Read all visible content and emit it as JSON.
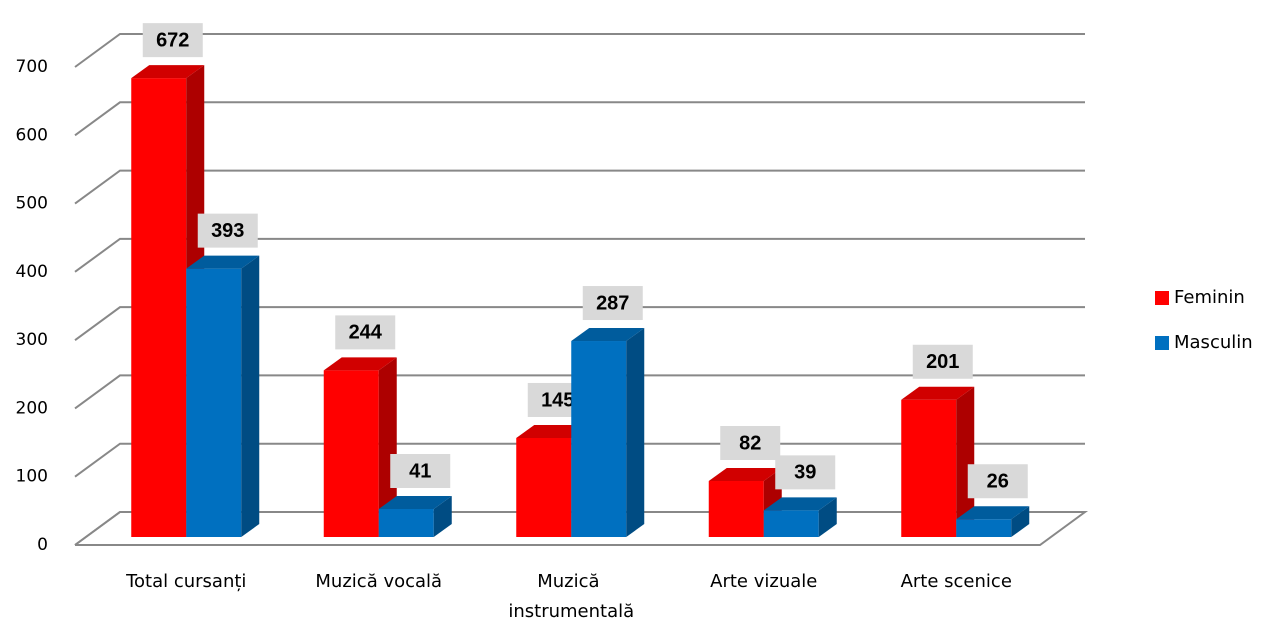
{
  "chart_data": {
    "type": "bar3d",
    "categories": [
      "Total cursanți",
      "Muzică vocală",
      "Muzică instrumentală",
      "Arte vizuale",
      "Arte scenice"
    ],
    "series": [
      {
        "name": "Feminin",
        "color": "#ff0000",
        "values": [
          672,
          244,
          145,
          82,
          201
        ]
      },
      {
        "name": "Masculin",
        "color": "#0070c0",
        "values": [
          393,
          41,
          287,
          39,
          26
        ]
      }
    ],
    "ylim": [
      0,
      700
    ],
    "yticks": [
      0,
      100,
      200,
      300,
      400,
      500,
      600,
      700
    ],
    "grid": true,
    "legend": "right"
  }
}
